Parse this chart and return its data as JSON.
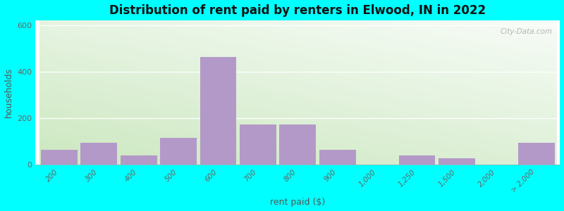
{
  "title": "Distribution of rent paid by renters in Elwood, IN in 2022",
  "xlabel": "rent paid ($)",
  "ylabel": "households",
  "bar_color": "#b399c8",
  "background_color": "#00ffff",
  "gradient_top": "#f2f8f2",
  "gradient_bottom": "#d4eccc",
  "categories": [
    "200",
    "300",
    "400",
    "500",
    "600",
    "700",
    "800",
    "900",
    "1,000",
    "1,250",
    "1,500",
    "2,000",
    "> 2,000"
  ],
  "values": [
    65,
    95,
    40,
    115,
    465,
    175,
    175,
    65,
    0,
    40,
    30,
    0,
    95
  ],
  "ylim": [
    0,
    620
  ],
  "yticks": [
    0,
    200,
    400,
    600
  ],
  "watermark": "City-Data.com"
}
